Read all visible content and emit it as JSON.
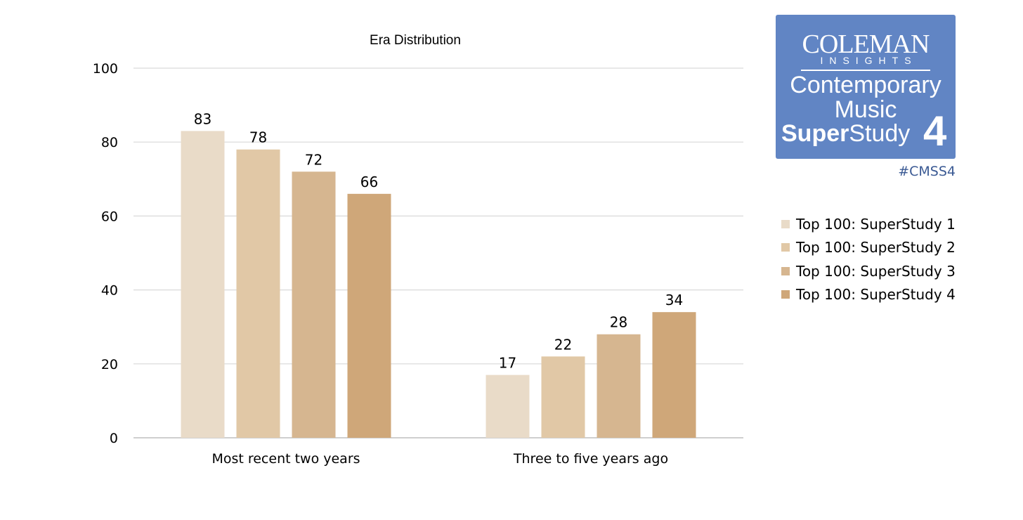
{
  "chart_data": {
    "type": "bar",
    "title": "Era Distribution",
    "categories": [
      "Most recent two years",
      "Three to five years ago"
    ],
    "series": [
      {
        "name": "Top 100: SuperStudy 1",
        "values": [
          83,
          17
        ],
        "color": "#e9dbc8"
      },
      {
        "name": "Top 100: SuperStudy 2",
        "values": [
          78,
          22
        ],
        "color": "#e1c8a6"
      },
      {
        "name": "Top 100: SuperStudy 3",
        "values": [
          72,
          28
        ],
        "color": "#d6b690"
      },
      {
        "name": "Top 100: SuperStudy 4",
        "values": [
          66,
          34
        ],
        "color": "#cfa779"
      }
    ],
    "ylim": [
      0,
      100
    ],
    "yticks": [
      0,
      20,
      40,
      60,
      80,
      100
    ],
    "grid": true,
    "legend": "right",
    "data_labels": true
  },
  "logo": {
    "brand": "COLEMAN",
    "brand_sub": "INSIGHTS",
    "line1": "Contemporary",
    "line2": "Music",
    "line3_bold": "Super",
    "line3_rest": "Study",
    "number": "4",
    "color": "#6185c4"
  },
  "hashtag": "#CMSS4"
}
